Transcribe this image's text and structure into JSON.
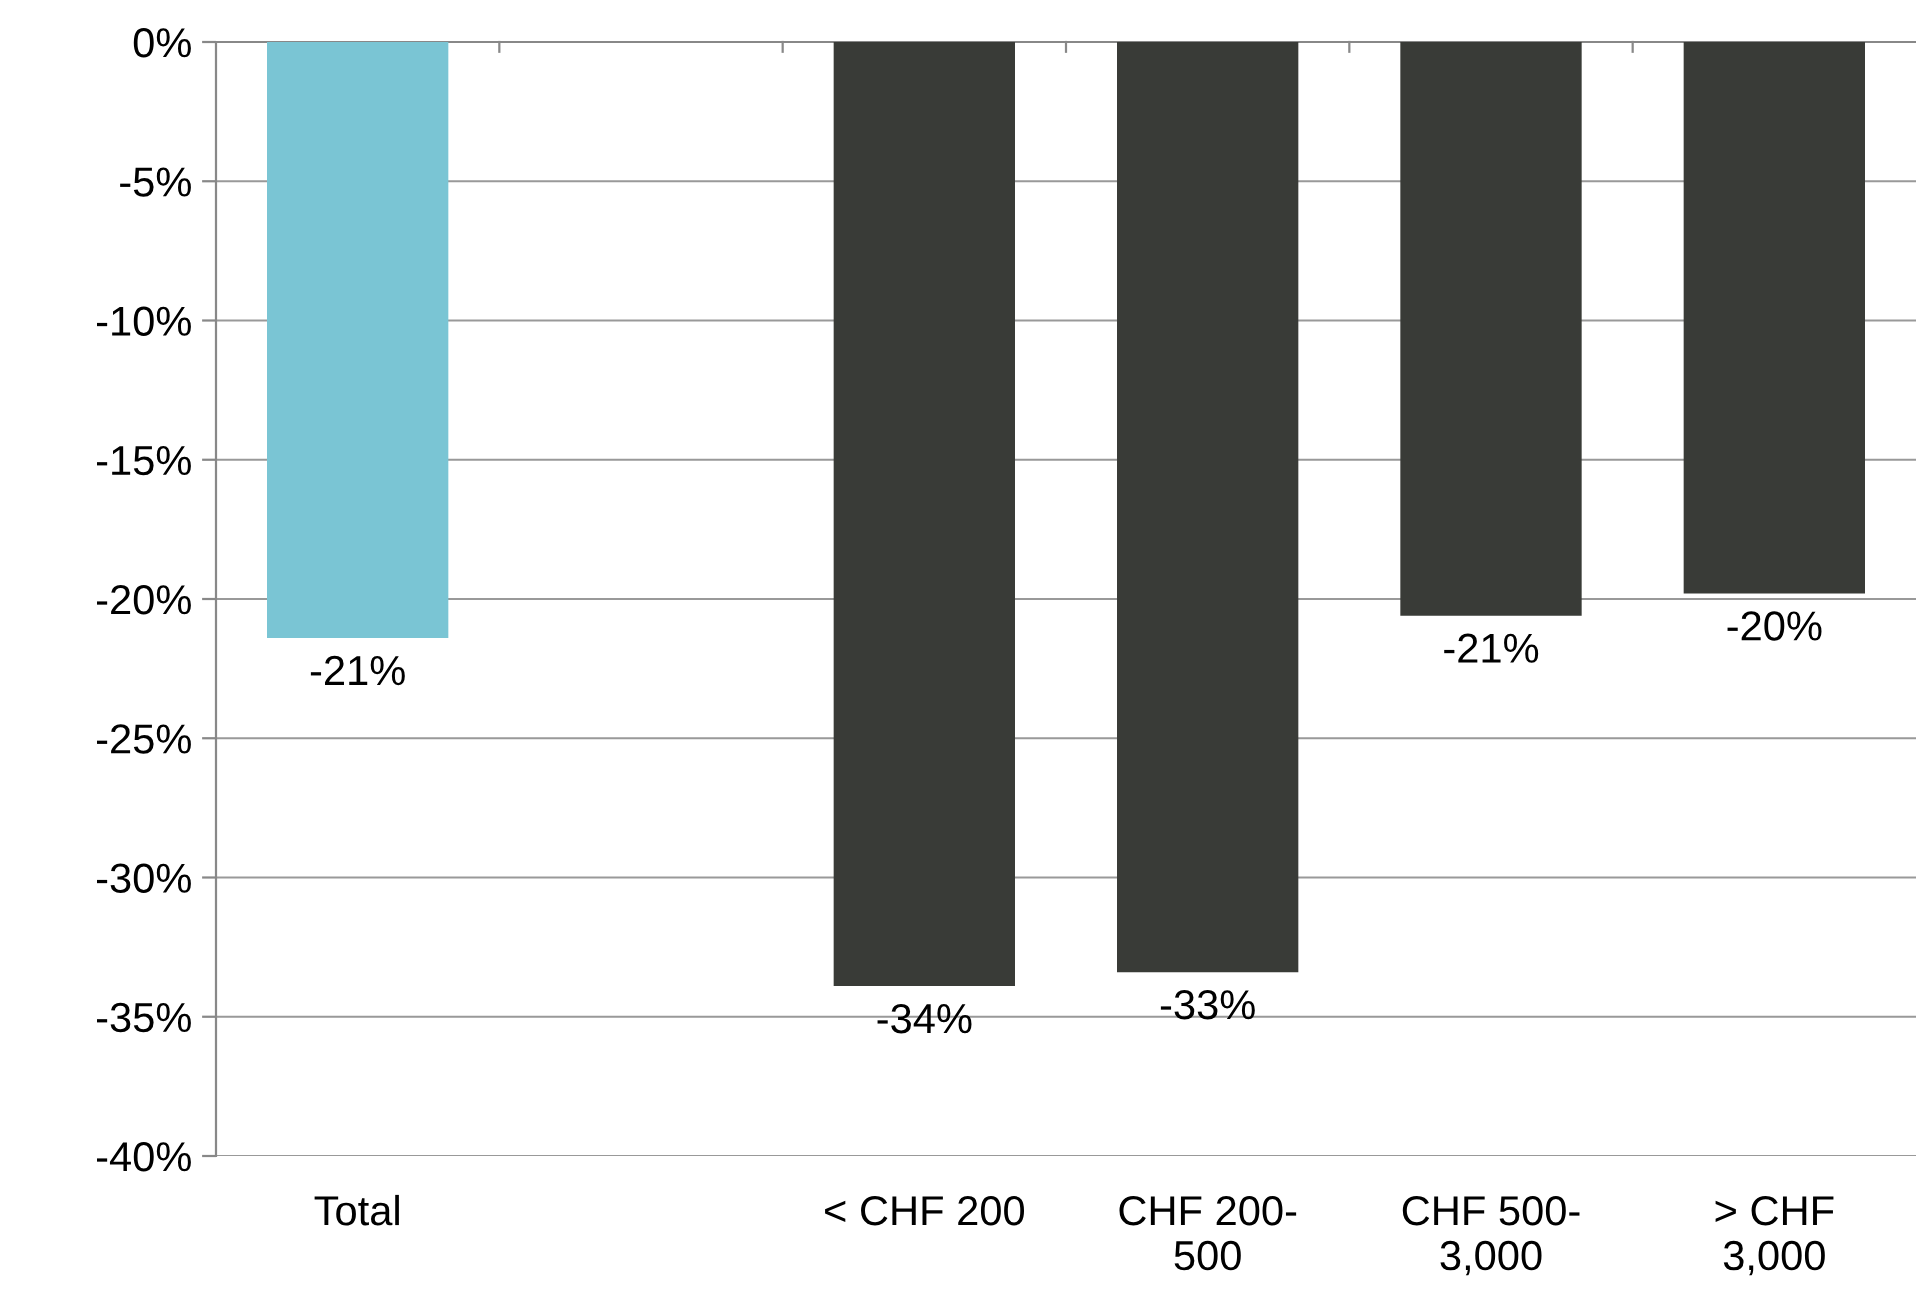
{
  "chart_data": {
    "type": "bar",
    "categories": [
      "Total",
      null,
      "< CHF 200",
      "CHF 200-500",
      "CHF 500-3,000",
      "> CHF 3,000"
    ],
    "values": [
      -21.4,
      null,
      -33.9,
      -33.4,
      -20.6,
      -19.8
    ],
    "value_labels": [
      "-21%",
      null,
      "-34%",
      "-33%",
      "-21%",
      "-20%"
    ],
    "colors": [
      "#7ac5d4",
      null,
      "#393b37",
      "#393b37",
      "#393b37",
      "#393b37"
    ],
    "ylim": [
      -40,
      0
    ],
    "yticks": [
      {
        "value": 0,
        "label": "0%"
      },
      {
        "value": -5,
        "label": "-5%"
      },
      {
        "value": -10,
        "label": "-10%"
      },
      {
        "value": -15,
        "label": "-15%"
      },
      {
        "value": -20,
        "label": "-20%"
      },
      {
        "value": -25,
        "label": "-25%"
      },
      {
        "value": -30,
        "label": "-30%"
      },
      {
        "value": -35,
        "label": "-35%"
      },
      {
        "value": -40,
        "label": "-40%"
      }
    ],
    "grid": "y",
    "legend": false
  }
}
